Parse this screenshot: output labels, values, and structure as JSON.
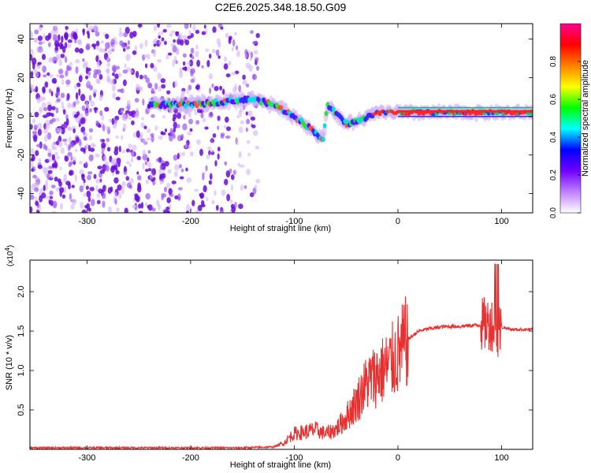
{
  "title": "C2E6.2025.348.18.50.G09",
  "chart_data": [
    {
      "type": "heatmap",
      "name": "spectrogram",
      "xlabel": "Height of straight line (km)",
      "ylabel": "Frequency (Hz)",
      "xlim": [
        -355,
        130
      ],
      "ylim": [
        -50,
        48
      ],
      "xticks": [
        -300,
        -200,
        -100,
        0,
        100
      ],
      "yticks": [
        -40,
        -20,
        0,
        20,
        40
      ],
      "colorbar": {
        "label": "Normalized spectral amplitude",
        "range": [
          0.0,
          1.0
        ],
        "ticks": [
          0.0,
          0.2,
          0.4,
          0.6,
          0.8
        ],
        "tick_labels": [
          "0.0",
          "0.2",
          "0.4",
          "0.6",
          "0.8"
        ],
        "colors": [
          "#ffffff",
          "#c080ff",
          "#7000ff",
          "#0000ff",
          "#00ffff",
          "#00ff00",
          "#ffff00",
          "#ff8000",
          "#ff0000",
          "#ff0090"
        ]
      },
      "noise_region_x": [
        -355,
        -135
      ],
      "signal_ridge": [
        {
          "x": -240,
          "f": 6
        },
        {
          "x": -200,
          "f": 6
        },
        {
          "x": -160,
          "f": 8
        },
        {
          "x": -140,
          "f": 9
        },
        {
          "x": -120,
          "f": 6
        },
        {
          "x": -100,
          "f": 0
        },
        {
          "x": -85,
          "f": -6
        },
        {
          "x": -72,
          "f": -12
        },
        {
          "x": -68,
          "f": 6
        },
        {
          "x": -50,
          "f": -4
        },
        {
          "x": -35,
          "f": -2
        },
        {
          "x": -20,
          "f": 2
        },
        {
          "x": 0,
          "f": 2
        },
        {
          "x": 50,
          "f": 2
        },
        {
          "x": 100,
          "f": 2
        },
        {
          "x": 130,
          "f": 2
        }
      ]
    },
    {
      "type": "line",
      "name": "snr",
      "xlabel": "Height of straight line (km)",
      "ylabel": "SNR (10 * v/v)",
      "scale_label": "(x10",
      "scale_exponent": "4",
      "xlim": [
        -355,
        130
      ],
      "ylim": [
        0,
        2.4
      ],
      "xticks": [
        -300,
        -200,
        -100,
        0,
        100
      ],
      "yticks": [
        0.5,
        1.0,
        1.5,
        2.0
      ],
      "ytick_labels": [
        "0.5",
        "1.0",
        "1.5",
        "2.0"
      ],
      "color": "#e83030",
      "series": [
        {
          "name": "SNR",
          "x": [
            -355,
            -300,
            -250,
            -200,
            -150,
            -120,
            -110,
            -105,
            -100,
            -90,
            -80,
            -70,
            -60,
            -50,
            -40,
            -30,
            -20,
            -10,
            0,
            10,
            20,
            30,
            40,
            50,
            60,
            70,
            80,
            90,
            95,
            100,
            110,
            120,
            130
          ],
          "y": [
            0.02,
            0.02,
            0.02,
            0.02,
            0.02,
            0.03,
            0.08,
            0.15,
            0.2,
            0.22,
            0.25,
            0.2,
            0.25,
            0.4,
            0.6,
            0.85,
            0.95,
            1.05,
            1.2,
            1.4,
            1.5,
            1.53,
            1.55,
            1.56,
            1.56,
            1.57,
            1.58,
            1.6,
            1.5,
            1.55,
            1.52,
            1.52,
            1.52
          ]
        }
      ]
    }
  ]
}
